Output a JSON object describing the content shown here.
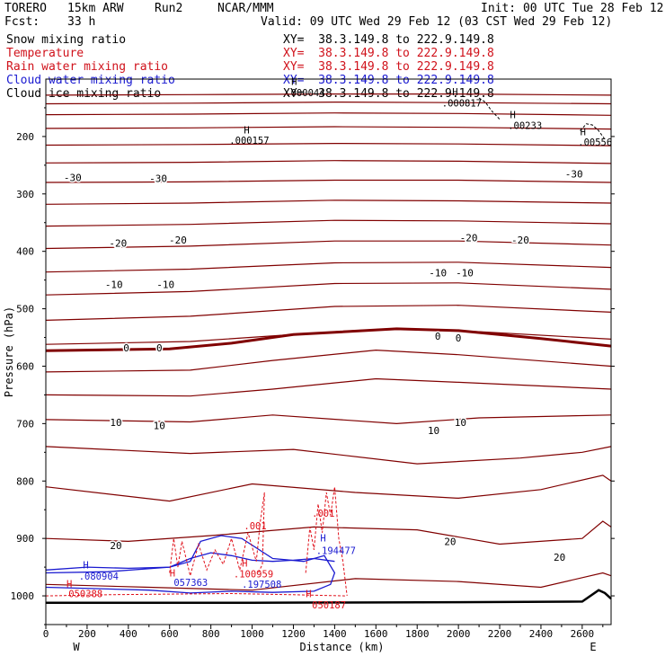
{
  "header": {
    "model": "TORERO",
    "resolution": "15km ARW",
    "run": "Run2",
    "org": "NCAR/MMM",
    "init": "Init: 00 UTC Tue 28 Feb 12",
    "fcst_label": "Fcst:",
    "fcst_value": "33 h",
    "valid": "Valid: 09 UTC Wed 29 Feb 12 (03 CST Wed 29 Feb 12)"
  },
  "fields": [
    {
      "name": "Snow mixing ratio",
      "xy": "XY=  38.3.149.8 to 222.9.149.8",
      "color": "#000000"
    },
    {
      "name": "Temperature",
      "xy": "XY=  38.3.149.8 to 222.9.149.8",
      "color": "#d0121b"
    },
    {
      "name": "Rain water mixing ratio",
      "xy": "XY=  38.3.149.8 to 222.9.149.8",
      "color": "#d0121b"
    },
    {
      "name": "Cloud water mixing ratio",
      "xy": "XY=  38.3.149.8 to 222.9.149.8",
      "color": "#1a1ad0"
    },
    {
      "name": "Cloud ice mixing ratio",
      "xy": "XY=  38.3.149.8 to 222.9.149.8",
      "color": "#000000"
    }
  ],
  "chart_data": {
    "type": "line",
    "xlabel": "Distance (km)",
    "ylabel": "Pressure (hPa)",
    "xlim": [
      0,
      2740
    ],
    "ylim": [
      1050,
      100
    ],
    "x_ticks": [
      0,
      200,
      400,
      600,
      800,
      1000,
      1200,
      1400,
      1600,
      1800,
      2000,
      2200,
      2400,
      2600
    ],
    "y_ticks": [
      200,
      300,
      400,
      500,
      600,
      700,
      800,
      900,
      1000
    ],
    "west_label": "W",
    "east_label": "E",
    "colors": {
      "temperature": "#800000",
      "rain": "#e0101a",
      "cloud_water": "#1a1ad0",
      "ice": "#000000",
      "terrain": "#000000"
    },
    "temperature_isotherms": [
      {
        "x": [
          0,
          700,
          1400,
          2000,
          2740
        ],
        "y": [
          128,
          127,
          126,
          126,
          128
        ]
      },
      {
        "x": [
          0,
          700,
          1400,
          2000,
          2740
        ],
        "y": [
          143,
          142,
          140,
          141,
          143
        ]
      },
      {
        "x": [
          0,
          700,
          1400,
          2000,
          2740
        ],
        "y": [
          162,
          161,
          159,
          160,
          163
        ]
      },
      {
        "x": [
          0,
          700,
          1400,
          2000,
          2740
        ],
        "y": [
          186,
          185,
          183,
          184,
          187
        ]
      },
      {
        "x": [
          0,
          700,
          1400,
          2000,
          2740
        ],
        "y": [
          215,
          214,
          212,
          213,
          216
        ]
      },
      {
        "x": [
          0,
          700,
          1400,
          2000,
          2740
        ],
        "y": [
          246,
          245,
          242,
          243,
          247
        ]
      },
      {
        "x": [
          0,
          700,
          1400,
          2000,
          2740
        ],
        "y": [
          280,
          279,
          276,
          276,
          280
        ]
      },
      {
        "x": [
          0,
          700,
          1400,
          2000,
          2740
        ],
        "y": [
          318,
          316,
          311,
          312,
          316
        ]
      },
      {
        "x": [
          0,
          700,
          1400,
          2000,
          2740
        ],
        "y": [
          356,
          353,
          346,
          347,
          352
        ]
      },
      {
        "x": [
          0,
          700,
          1400,
          2000,
          2740
        ],
        "y": [
          395,
          391,
          382,
          382,
          389
        ]
      },
      {
        "x": [
          0,
          700,
          1400,
          2000,
          2740
        ],
        "y": [
          436,
          431,
          420,
          419,
          428
        ]
      },
      {
        "x": [
          0,
          700,
          1400,
          2000,
          2740
        ],
        "y": [
          476,
          470,
          456,
          455,
          466
        ]
      },
      {
        "x": [
          0,
          700,
          1400,
          2000,
          2740
        ],
        "y": [
          520,
          513,
          496,
          494,
          506
        ]
      },
      {
        "x": [
          0,
          700,
          1400,
          1700,
          2100,
          2740
        ],
        "y": [
          562,
          557,
          540,
          534,
          540,
          553
        ]
      },
      {
        "x": [
          0,
          700,
          1100,
          1600,
          2000,
          2740
        ],
        "y": [
          610,
          607,
          590,
          572,
          580,
          600
        ]
      },
      {
        "x": [
          0,
          700,
          1100,
          1600,
          2000,
          2740
        ],
        "y": [
          650,
          652,
          640,
          622,
          628,
          640
        ]
      },
      {
        "x": [
          0,
          700,
          1100,
          1700,
          2100,
          2740
        ],
        "y": [
          693,
          697,
          685,
          700,
          690,
          685
        ]
      },
      {
        "x": [
          0,
          700,
          1200,
          1800,
          2300,
          2600,
          2740
        ],
        "y": [
          740,
          752,
          745,
          770,
          760,
          750,
          740
        ]
      },
      {
        "x": [
          0,
          600,
          1000,
          1500,
          2000,
          2400,
          2700,
          2740
        ],
        "y": [
          810,
          835,
          805,
          820,
          830,
          815,
          790,
          800
        ]
      },
      {
        "x": [
          0,
          400,
          800,
          1300,
          1800,
          2200,
          2600,
          2700,
          2740
        ],
        "y": [
          900,
          905,
          895,
          880,
          885,
          910,
          900,
          870,
          880
        ]
      },
      {
        "x": [
          0,
          500,
          1000,
          1500,
          2000,
          2400,
          2700,
          2740
        ],
        "y": [
          980,
          985,
          990,
          970,
          975,
          985,
          960,
          965
        ]
      }
    ],
    "zero_isotherm": {
      "x": [
        0,
        600,
        900,
        1200,
        1700,
        2000,
        2400,
        2740
      ],
      "y": [
        573,
        570,
        560,
        545,
        535,
        538,
        552,
        565
      ]
    },
    "temperature_labels": [
      {
        "x": 130,
        "y": 271,
        "text": "-30"
      },
      {
        "x": 545,
        "y": 273,
        "text": "-30"
      },
      {
        "x": 2560,
        "y": 265,
        "text": "-30"
      },
      {
        "x": 350,
        "y": 386,
        "text": "-20"
      },
      {
        "x": 640,
        "y": 380,
        "text": "-20"
      },
      {
        "x": 2050,
        "y": 376,
        "text": "-20"
      },
      {
        "x": 2300,
        "y": 380,
        "text": "-20"
      },
      {
        "x": 330,
        "y": 458,
        "text": "-10"
      },
      {
        "x": 580,
        "y": 458,
        "text": "-10"
      },
      {
        "x": 1900,
        "y": 437,
        "text": "-10"
      },
      {
        "x": 2030,
        "y": 437,
        "text": "-10"
      },
      {
        "x": 390,
        "y": 568,
        "text": "0"
      },
      {
        "x": 550,
        "y": 568,
        "text": "0"
      },
      {
        "x": 1900,
        "y": 548,
        "text": "0"
      },
      {
        "x": 2000,
        "y": 551,
        "text": "0"
      },
      {
        "x": 340,
        "y": 698,
        "text": "10"
      },
      {
        "x": 550,
        "y": 703,
        "text": "10"
      },
      {
        "x": 1880,
        "y": 712,
        "text": "10"
      },
      {
        "x": 2010,
        "y": 698,
        "text": "10"
      },
      {
        "x": 340,
        "y": 912,
        "text": "20"
      },
      {
        "x": 1960,
        "y": 905,
        "text": "20"
      },
      {
        "x": 2490,
        "y": 933,
        "text": "20"
      }
    ],
    "cloud_water": [
      {
        "x": [
          0,
          300,
          600,
          700,
          750,
          850,
          950,
          1100,
          1250,
          1350,
          1400,
          1380,
          1300,
          1100,
          900,
          700,
          500,
          300,
          0
        ],
        "y": [
          960,
          958,
          950,
          940,
          905,
          895,
          900,
          935,
          940,
          930,
          960,
          980,
          992,
          994,
          992,
          995,
          990,
          988,
          985
        ]
      },
      {
        "x": [
          0,
          200,
          400,
          600,
          700,
          800,
          900,
          1000,
          1100,
          1200,
          1300,
          1400
        ],
        "y": [
          955,
          950,
          952,
          950,
          935,
          925,
          930,
          938,
          940,
          938,
          935,
          940
        ]
      }
    ],
    "rain": [
      {
        "x": [
          600,
          620,
          640,
          660,
          700,
          740,
          780,
          820,
          860,
          900,
          940,
          980,
          1020,
          1040,
          1060,
          1050,
          1030
        ],
        "y": [
          960,
          900,
          950,
          905,
          965,
          910,
          955,
          920,
          945,
          900,
          955,
          890,
          940,
          870,
          820,
          945,
          960
        ]
      },
      {
        "x": [
          1260,
          1280,
          1300,
          1320,
          1340,
          1360,
          1380,
          1400,
          1420,
          1440,
          1460
        ],
        "y": [
          960,
          880,
          920,
          840,
          890,
          820,
          860,
          810,
          900,
          940,
          1000
        ]
      },
      {
        "x": [
          0,
          300,
          600,
          900,
          1200,
          1450
        ],
        "y": [
          1000,
          998,
          997,
          996,
          998,
          1000
        ]
      }
    ],
    "ice": [
      {
        "x": [
          2100,
          2130,
          2160,
          2200
        ],
        "y": [
          133,
          140,
          155,
          170
        ]
      },
      {
        "x": [
          2590,
          2620,
          2650,
          2680,
          2710
        ],
        "y": [
          190,
          178,
          180,
          190,
          205
        ]
      }
    ],
    "terrain": {
      "x": [
        0,
        1000,
        2000,
        2600,
        2680,
        2710,
        2740
      ],
      "y": [
        1012,
        1012,
        1011,
        1010,
        990,
        995,
        1005
      ]
    },
    "annotations": [
      {
        "x": 960,
        "y": 195,
        "text": "H",
        "color": "#000000"
      },
      {
        "x": 890,
        "y": 213,
        "text": ".000157",
        "color": "#000000"
      },
      {
        "x": 1190,
        "y": 110,
        "text": "H",
        "color": "#000000"
      },
      {
        "x": 1160,
        "y": 130,
        "text": ".000044",
        "color": "#000000"
      },
      {
        "x": 1970,
        "y": 128,
        "text": "H",
        "color": "#000000"
      },
      {
        "x": 1920,
        "y": 148,
        "text": ".000817",
        "color": "#000000"
      },
      {
        "x": 2250,
        "y": 168,
        "text": "H",
        "color": "#000000"
      },
      {
        "x": 2240,
        "y": 187,
        "text": ".00233",
        "color": "#000000"
      },
      {
        "x": 2590,
        "y": 198,
        "text": "H",
        "color": "#000000"
      },
      {
        "x": 2580,
        "y": 216,
        "text": ".00556",
        "color": "#000000"
      },
      {
        "x": 960,
        "y": 884,
        "text": ".001",
        "color": "#e0101a"
      },
      {
        "x": 1290,
        "y": 862,
        "text": ".001",
        "color": "#e0101a"
      },
      {
        "x": 1330,
        "y": 905,
        "text": "H",
        "color": "#1a1ad0"
      },
      {
        "x": 1310,
        "y": 927,
        "text": ".194477",
        "color": "#1a1ad0"
      },
      {
        "x": 180,
        "y": 952,
        "text": "H",
        "color": "#1a1ad0"
      },
      {
        "x": 160,
        "y": 972,
        "text": ".080904",
        "color": "#1a1ad0"
      },
      {
        "x": 600,
        "y": 966,
        "text": "H",
        "color": "#e0101a"
      },
      {
        "x": 620,
        "y": 983,
        "text": "057363",
        "color": "#1a1ad0"
      },
      {
        "x": 950,
        "y": 949,
        "text": "H",
        "color": "#e0101a"
      },
      {
        "x": 910,
        "y": 968,
        "text": ".100959",
        "color": "#e0101a"
      },
      {
        "x": 950,
        "y": 986,
        "text": ".197508",
        "color": "#1a1ad0"
      },
      {
        "x": 100,
        "y": 985,
        "text": "H",
        "color": "#e0101a"
      },
      {
        "x": 110,
        "y": 1002,
        "text": "050388",
        "color": "#e0101a"
      },
      {
        "x": 1260,
        "y": 1002,
        "text": "H",
        "color": "#e0101a"
      },
      {
        "x": 1290,
        "y": 1022,
        "text": "050187",
        "color": "#e0101a"
      }
    ]
  }
}
